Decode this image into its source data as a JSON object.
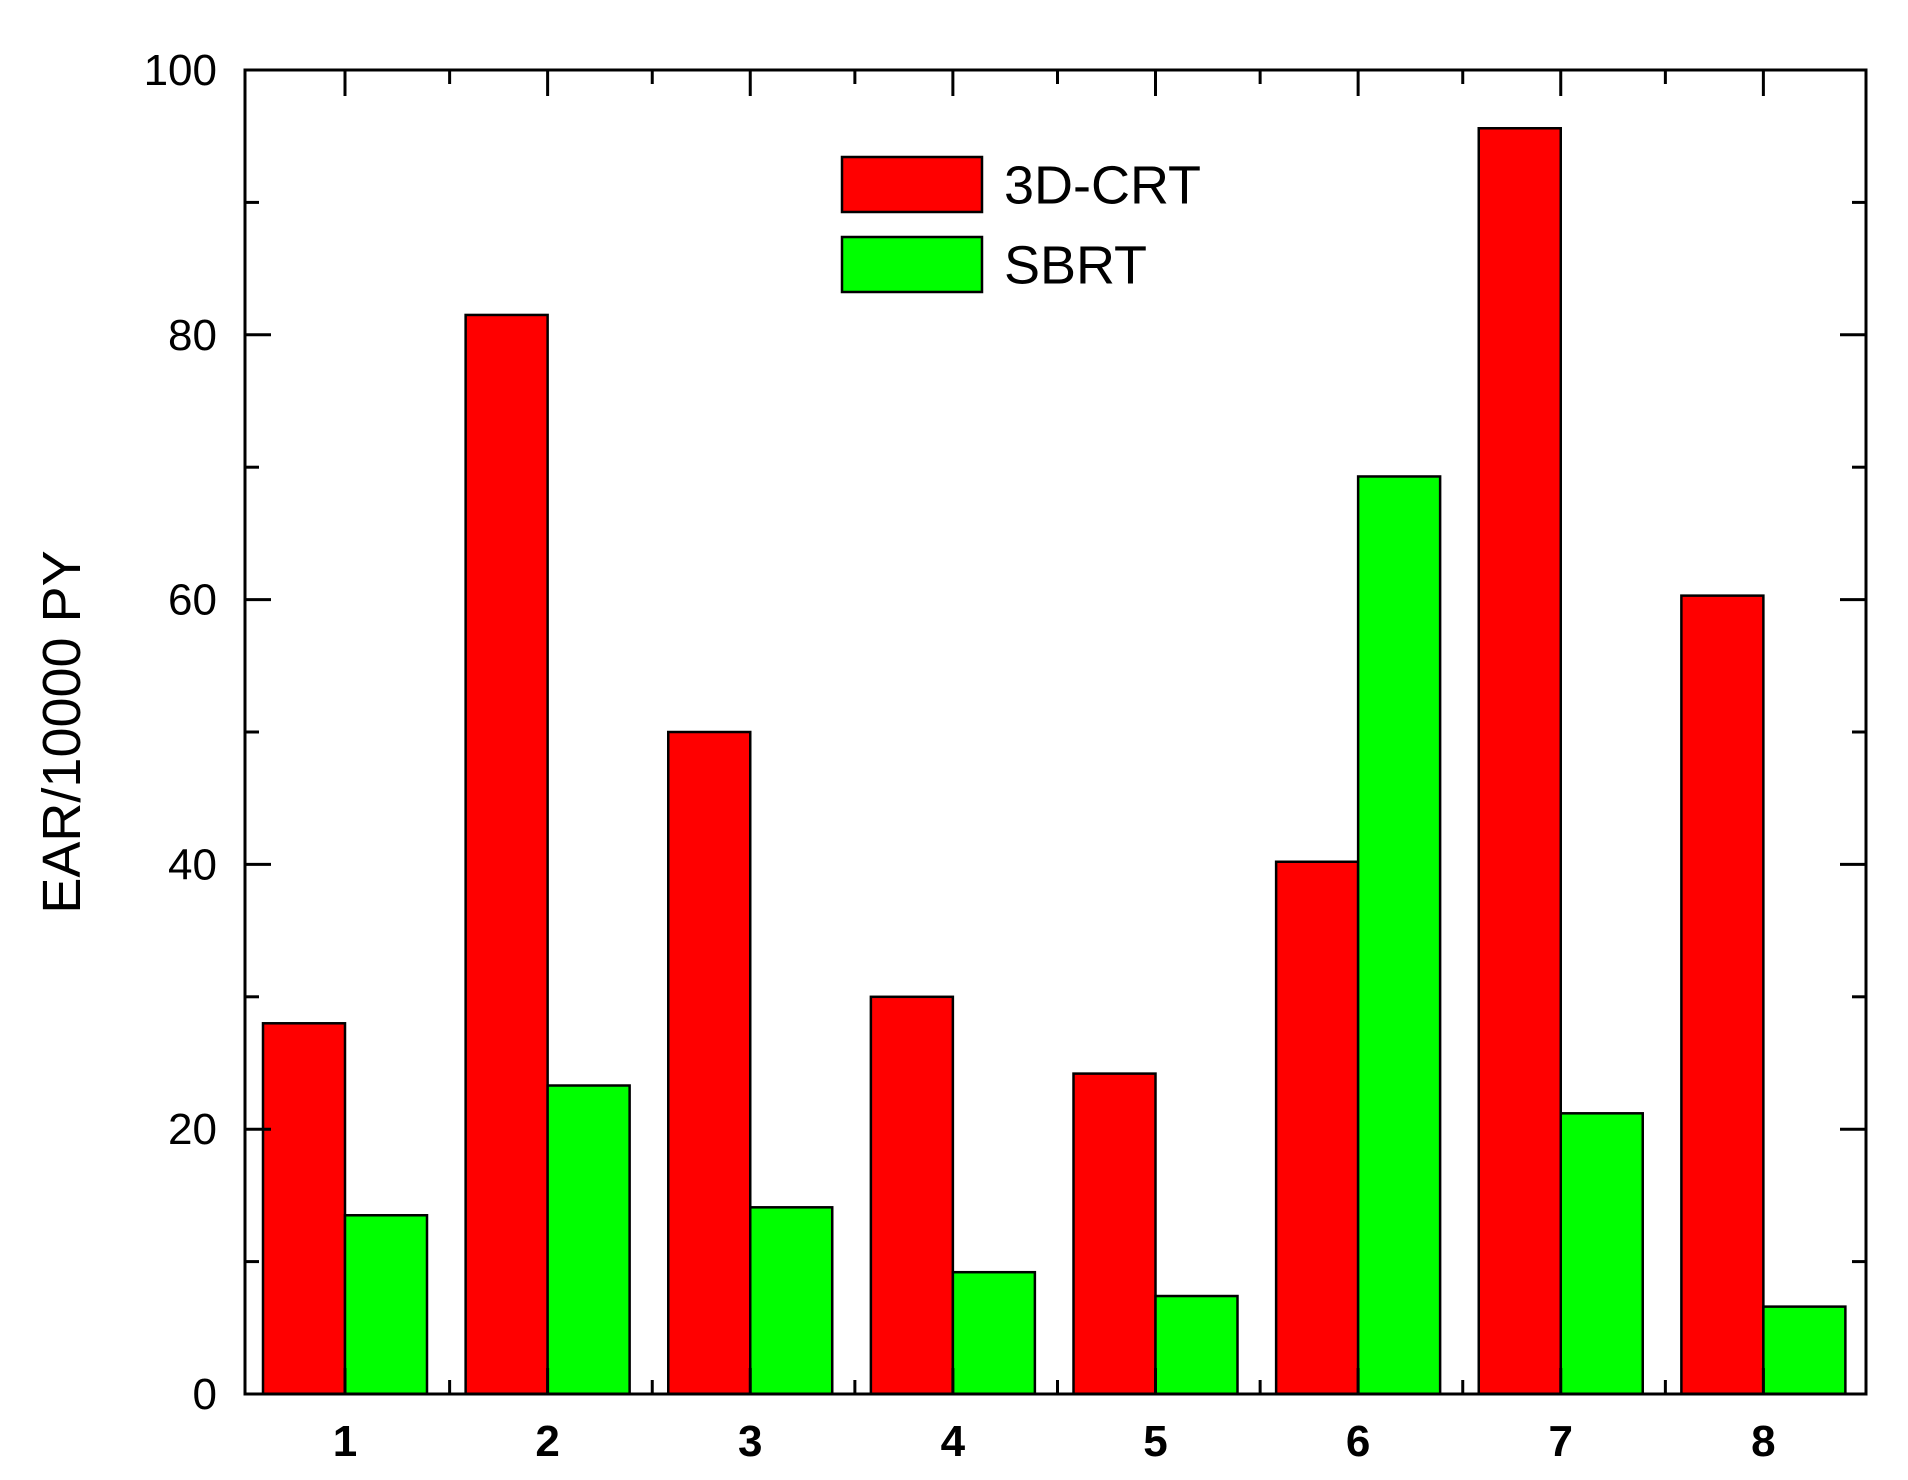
{
  "chart_data": {
    "type": "bar",
    "categories": [
      "1",
      "2",
      "3",
      "4",
      "5",
      "6",
      "7",
      "8"
    ],
    "series": [
      {
        "name": "3D-CRT",
        "color": "#ff0000",
        "values": [
          28,
          81.5,
          50,
          30,
          24.2,
          40.2,
          95.6,
          60.3
        ]
      },
      {
        "name": "SBRT",
        "color": "#00ff00",
        "values": [
          13.5,
          23.3,
          14.1,
          9.2,
          7.4,
          69.3,
          21.2,
          6.6
        ]
      }
    ],
    "xlabel": "",
    "ylabel": "EAR/10000 PY",
    "ylim": [
      0,
      100
    ],
    "yticks_major": [
      0,
      20,
      40,
      60,
      80,
      100
    ],
    "yticks_minor": [
      10,
      30,
      50,
      70,
      90
    ],
    "legend_position": "top-center",
    "grid": false
  }
}
